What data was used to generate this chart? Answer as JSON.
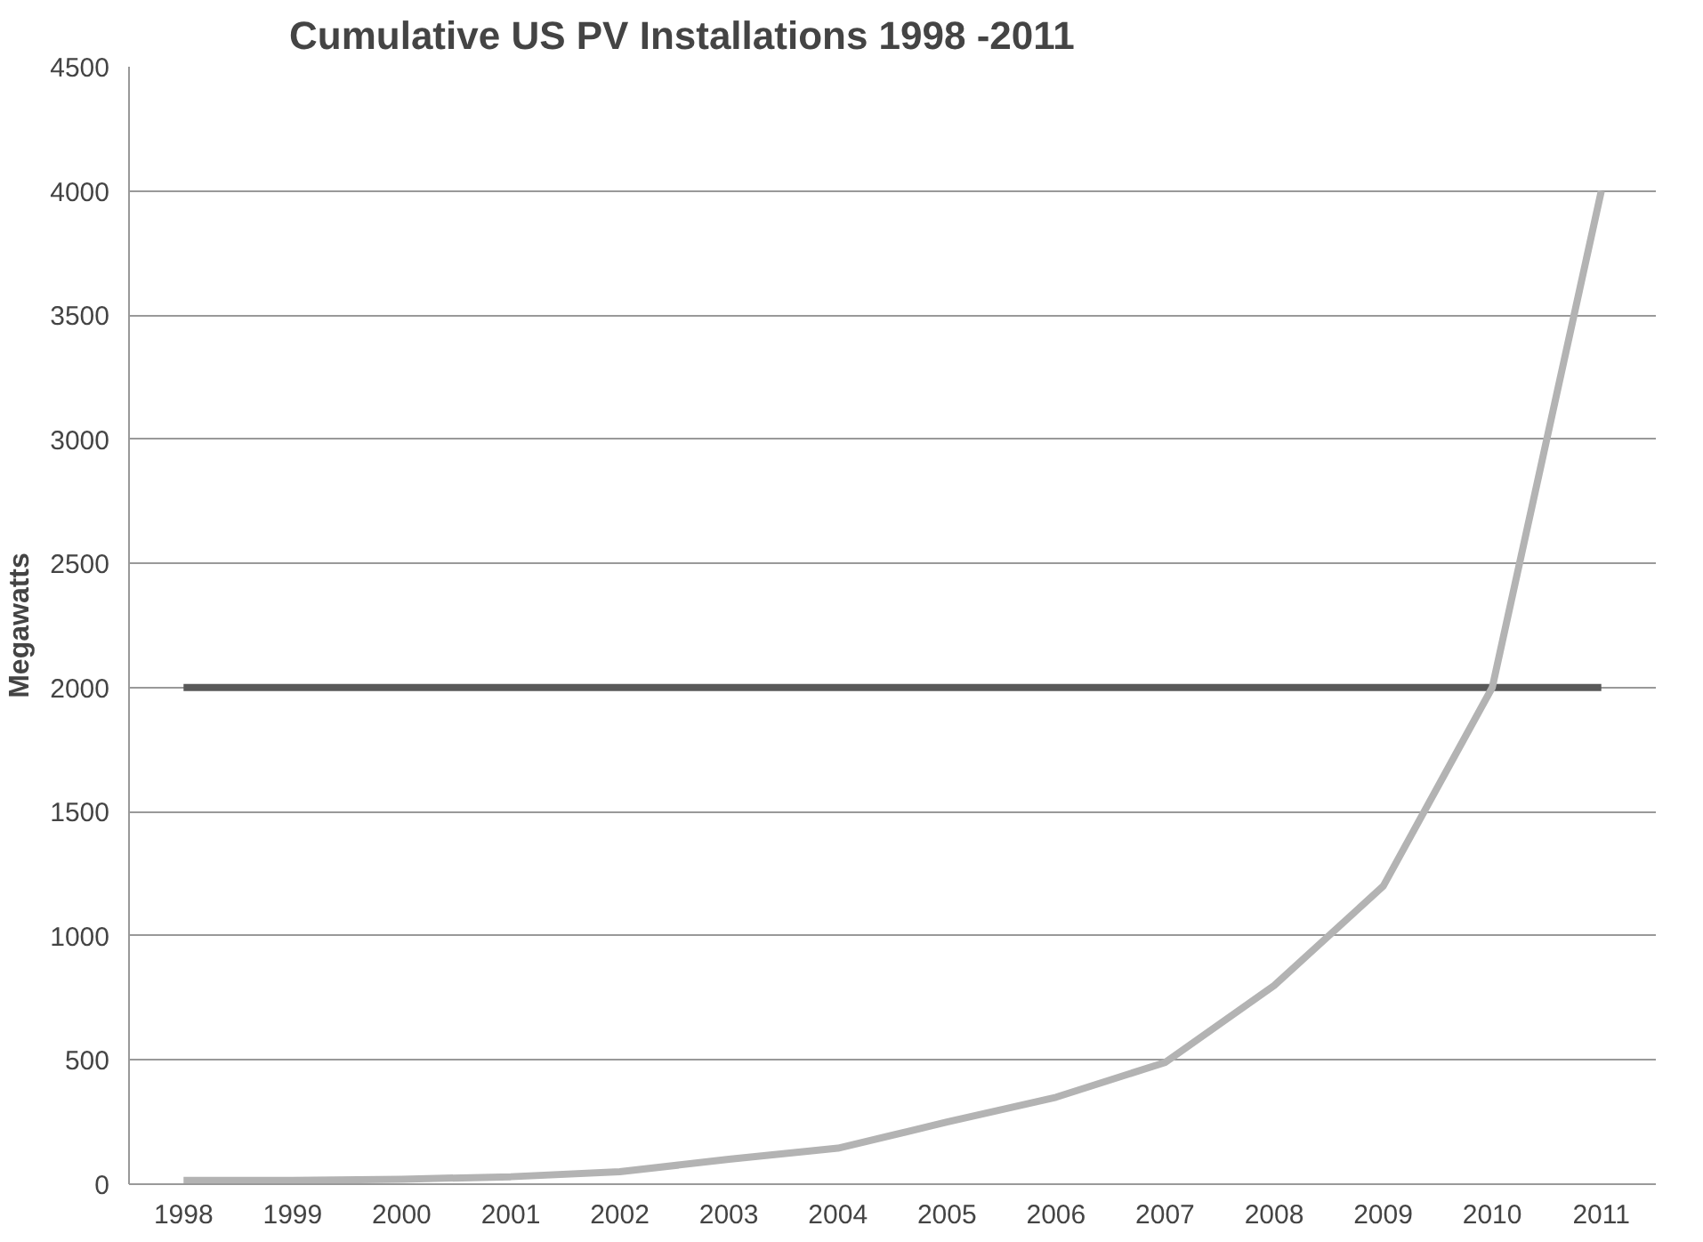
{
  "chart_data": {
    "type": "line",
    "title": "Cumulative US PV Installations 1998 -2011",
    "ylabel": "Megawatts",
    "categories": [
      "1998",
      "1999",
      "2000",
      "2001",
      "2002",
      "2003",
      "2004",
      "2005",
      "2006",
      "2007",
      "2008",
      "2009",
      "2010",
      "2011"
    ],
    "series": [
      {
        "color": "#595959",
        "values": [
          2000,
          2000,
          2000,
          2000,
          2000,
          2000,
          2000,
          2000,
          2000,
          2000,
          2000,
          2000,
          2000,
          2000
        ]
      },
      {
        "color": "#b3b3b3",
        "values": [
          15,
          15,
          20,
          30,
          50,
          100,
          145,
          250,
          350,
          490,
          800,
          1200,
          2000,
          4000
        ]
      }
    ],
    "ylim": [
      0,
      4500
    ],
    "yticks": [
      0,
      500,
      1000,
      1500,
      2000,
      2500,
      3000,
      3500,
      4000,
      4500
    ],
    "grid": "y"
  }
}
